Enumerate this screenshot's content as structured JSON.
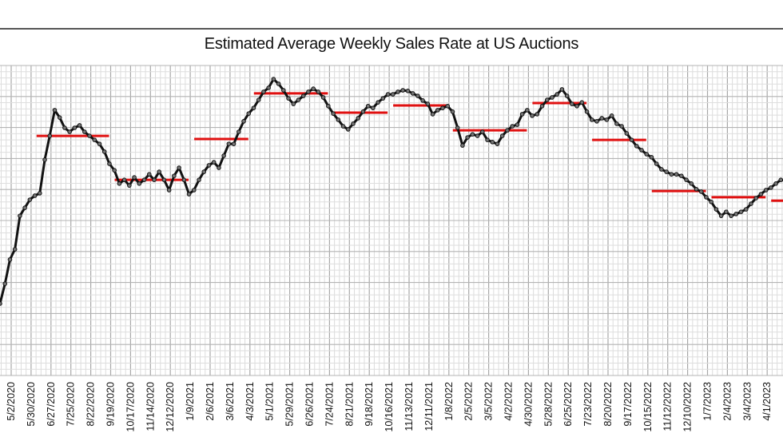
{
  "chart_data": {
    "type": "line",
    "title": "Estimated Average Weekly Sales Rate at US Auctions",
    "xlabel": "",
    "ylabel": "",
    "y_units": "relative index (no y-axis labels shown; 0 = chart bottom, 100 = chart top)",
    "ylim": [
      0,
      100
    ],
    "grid": true,
    "legend": "none",
    "x_week_interval": 1,
    "x_start_week_offset": -2.25,
    "tick_labels": [
      "5/2/2020",
      "5/30/2020",
      "6/27/2020",
      "7/25/2020",
      "8/22/2020",
      "9/19/2020",
      "10/17/2020",
      "11/14/2020",
      "12/12/2020",
      "1/9/2021",
      "2/6/2021",
      "3/6/2021",
      "4/3/2021",
      "5/1/2021",
      "5/29/2021",
      "6/26/2021",
      "7/24/2021",
      "8/21/2021",
      "9/18/2021",
      "10/16/2021",
      "11/13/2021",
      "12/11/2021",
      "1/8/2022",
      "2/5/2022",
      "3/5/2022",
      "4/2/2022",
      "4/30/2022",
      "5/28/2022",
      "6/25/2022",
      "7/23/2022",
      "8/20/2022",
      "9/17/2022",
      "10/15/2022",
      "11/12/2022",
      "12/10/2022",
      "1/7/2023",
      "2/4/2023",
      "3/4/2023",
      "4/1/2023"
    ],
    "tick_every_weeks": 4,
    "series": [
      {
        "name": "Weekly sales rate",
        "color": "#111111",
        "values": [
          23.2,
          29.6,
          37.4,
          40.7,
          51.5,
          54.1,
          56.7,
          58.0,
          58.8,
          69.6,
          77.3,
          85.6,
          83.2,
          79.9,
          78.6,
          79.9,
          80.7,
          78.6,
          77.3,
          76.0,
          74.7,
          72.2,
          68.3,
          66.2,
          61.9,
          63.1,
          61.3,
          63.9,
          61.9,
          63.1,
          64.9,
          63.1,
          65.7,
          63.1,
          59.8,
          64.4,
          67.0,
          63.1,
          58.5,
          59.8,
          63.1,
          65.7,
          67.8,
          68.8,
          67.0,
          70.9,
          74.7,
          74.7,
          78.6,
          82.0,
          84.5,
          86.3,
          88.9,
          91.5,
          92.8,
          95.6,
          94.1,
          92.0,
          89.4,
          87.6,
          88.9,
          90.2,
          91.5,
          92.5,
          91.5,
          89.7,
          86.9,
          84.5,
          82.5,
          80.4,
          79.4,
          81.2,
          83.0,
          85.1,
          86.9,
          86.3,
          88.1,
          89.4,
          90.7,
          90.7,
          91.5,
          92.0,
          91.8,
          91.0,
          90.2,
          88.7,
          87.6,
          84.3,
          85.6,
          86.3,
          86.9,
          85.1,
          79.9,
          74.2,
          76.8,
          77.8,
          77.3,
          78.6,
          76.0,
          75.3,
          74.7,
          77.3,
          79.1,
          80.4,
          80.9,
          84.3,
          85.6,
          83.8,
          84.3,
          86.9,
          88.9,
          89.7,
          90.7,
          92.3,
          90.2,
          87.6,
          86.9,
          88.1,
          85.1,
          82.5,
          82.0,
          83.0,
          82.5,
          83.8,
          81.2,
          80.4,
          78.1,
          76.0,
          74.0,
          72.7,
          71.4,
          70.4,
          68.3,
          66.5,
          65.7,
          64.9,
          64.9,
          64.4,
          63.1,
          61.9,
          60.1,
          59.3,
          57.5,
          56.0,
          53.6,
          51.5,
          52.8,
          51.5,
          52.1,
          52.8,
          53.6,
          55.4,
          57.2,
          58.5,
          59.8,
          60.6,
          61.9,
          63.1,
          62.9,
          61.9,
          60.6,
          59.3,
          58.5,
          58.8
        ],
        "markers": true
      }
    ],
    "period_averages": {
      "name": "Period average",
      "color": "#e01010",
      "segments": [
        {
          "start_tick": "6/27/2020",
          "value": 77.3
        },
        {
          "start_tick": "9/19/2020",
          "value": 63.1
        },
        {
          "start_tick": "1/9/2021",
          "value": 76.3
        },
        {
          "start_tick": "4/3/2021",
          "value": 91.0
        },
        {
          "start_tick": "7/24/2021",
          "value": 84.8
        },
        {
          "start_tick": "10/16/2021",
          "value": 87.1
        },
        {
          "start_tick": "1/8/2022",
          "value": 79.1
        },
        {
          "start_tick": "4/30/2022",
          "value": 87.9
        },
        {
          "start_tick": "7/23/2022",
          "value": 76.0
        },
        {
          "start_tick": "10/15/2022",
          "value": 59.5
        },
        {
          "start_tick": "1/7/2023",
          "value": 57.5
        },
        {
          "start_tick": "4/1/2023",
          "value": 56.4
        }
      ]
    }
  }
}
